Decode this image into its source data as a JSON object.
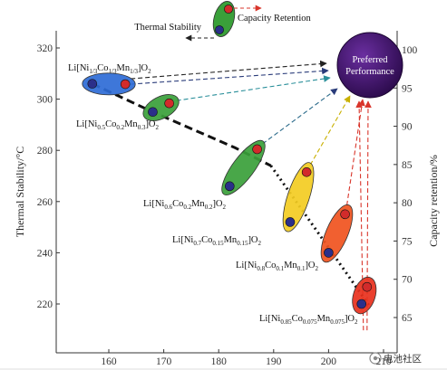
{
  "chart_data": {
    "type": "scatter",
    "xlabel": "",
    "ylabel": "Thermal Stability/°C",
    "y2label": "Capacity retention/%",
    "x_ticks": [
      "160",
      "170",
      "180",
      "190",
      "200",
      "210"
    ],
    "y_ticks": [
      "220",
      "240",
      "260",
      "280",
      "300",
      "320"
    ],
    "y2_ticks": [
      "65",
      "70",
      "75",
      "80",
      "85",
      "90",
      "95",
      "100"
    ],
    "xlim": [
      152,
      213
    ],
    "ylim": [
      206,
      328
    ],
    "y2lim": [
      62,
      103
    ],
    "materials": [
      {
        "name": "Li[Ni1/3Co1/3Mn1/3]O2",
        "parts": [
          [
            "Li[Ni",
            ""
          ],
          [
            "1/3",
            "s"
          ],
          [
            "Co",
            ""
          ],
          [
            "1/3",
            "s"
          ],
          [
            "Mn",
            ""
          ],
          [
            "1/3",
            "s"
          ],
          [
            "]O",
            ""
          ],
          [
            "2",
            "s"
          ]
        ],
        "color": "#2e6bd6",
        "x_low": 157,
        "x_high": 163,
        "thermal_stability": 306,
        "capacity_retention": 95.5
      },
      {
        "name": "Li[Ni0.5Co0.2Mn0.3]O2",
        "parts": [
          [
            "Li[Ni",
            ""
          ],
          [
            "0.5",
            "s"
          ],
          [
            "Co",
            ""
          ],
          [
            "0.2",
            "s"
          ],
          [
            "Mn",
            ""
          ],
          [
            "0.3",
            "s"
          ],
          [
            "]O",
            ""
          ],
          [
            "2",
            "s"
          ]
        ],
        "color": "#3aa03a",
        "x_low": 168,
        "x_high": 171,
        "thermal_stability": 295,
        "capacity_retention": 93
      },
      {
        "name": "Li[Ni0.6Co0.2Mn0.2]O2",
        "parts": [
          [
            "Li[Ni",
            ""
          ],
          [
            "0.6",
            "s"
          ],
          [
            "Co",
            ""
          ],
          [
            "0.2",
            "s"
          ],
          [
            "Mn",
            ""
          ],
          [
            "0.2",
            "s"
          ],
          [
            "]O",
            ""
          ],
          [
            "2",
            "s"
          ]
        ],
        "color": "#3aa03a",
        "x_low": 182,
        "x_high": 187,
        "thermal_stability": 266,
        "capacity_retention": 87
      },
      {
        "name": "Li[Ni0.7Co0.15Mn0.15]O2",
        "parts": [
          [
            "Li[Ni",
            ""
          ],
          [
            "0.7",
            "s"
          ],
          [
            "Co",
            ""
          ],
          [
            "0.15",
            "s"
          ],
          [
            "Mn",
            ""
          ],
          [
            "0.15",
            "s"
          ],
          [
            "]O",
            ""
          ],
          [
            "2",
            "s"
          ]
        ],
        "color": "#f3cc22",
        "x_low": 193,
        "x_high": 196,
        "thermal_stability": 252,
        "capacity_retention": 84
      },
      {
        "name": "Li[Ni0.8Co0.1Mn0.1]O2",
        "parts": [
          [
            "Li[Ni",
            ""
          ],
          [
            "0.8",
            "s"
          ],
          [
            "Co",
            ""
          ],
          [
            "0.1",
            "s"
          ],
          [
            "Mn",
            ""
          ],
          [
            "0.1",
            "s"
          ],
          [
            "]O",
            ""
          ],
          [
            "2",
            "s"
          ]
        ],
        "color": "#f0521e",
        "x_low": 200,
        "x_high": 203,
        "thermal_stability": 240,
        "capacity_retention": 78.5
      },
      {
        "name": "Li[Ni0.85Co0.075Mn0.075]O2",
        "parts": [
          [
            "Li[Ni",
            ""
          ],
          [
            "0.85",
            "s"
          ],
          [
            "Co",
            ""
          ],
          [
            "0.075",
            "s"
          ],
          [
            "Mn",
            ""
          ],
          [
            "0.075",
            "s"
          ],
          [
            "]O",
            ""
          ],
          [
            "2",
            "s"
          ]
        ],
        "color": "#e8301c",
        "x_low": 206,
        "x_high": 207,
        "thermal_stability": 220,
        "capacity_retention": 69
      }
    ],
    "legend": {
      "capacity": "Capacity Retention",
      "thermal": "Thermal Stability",
      "color": "#3aa03a"
    },
    "preferred": {
      "line1": "Preferred",
      "line2": "Performance",
      "color": "#3a1260"
    }
  },
  "watermark": "电池社区"
}
